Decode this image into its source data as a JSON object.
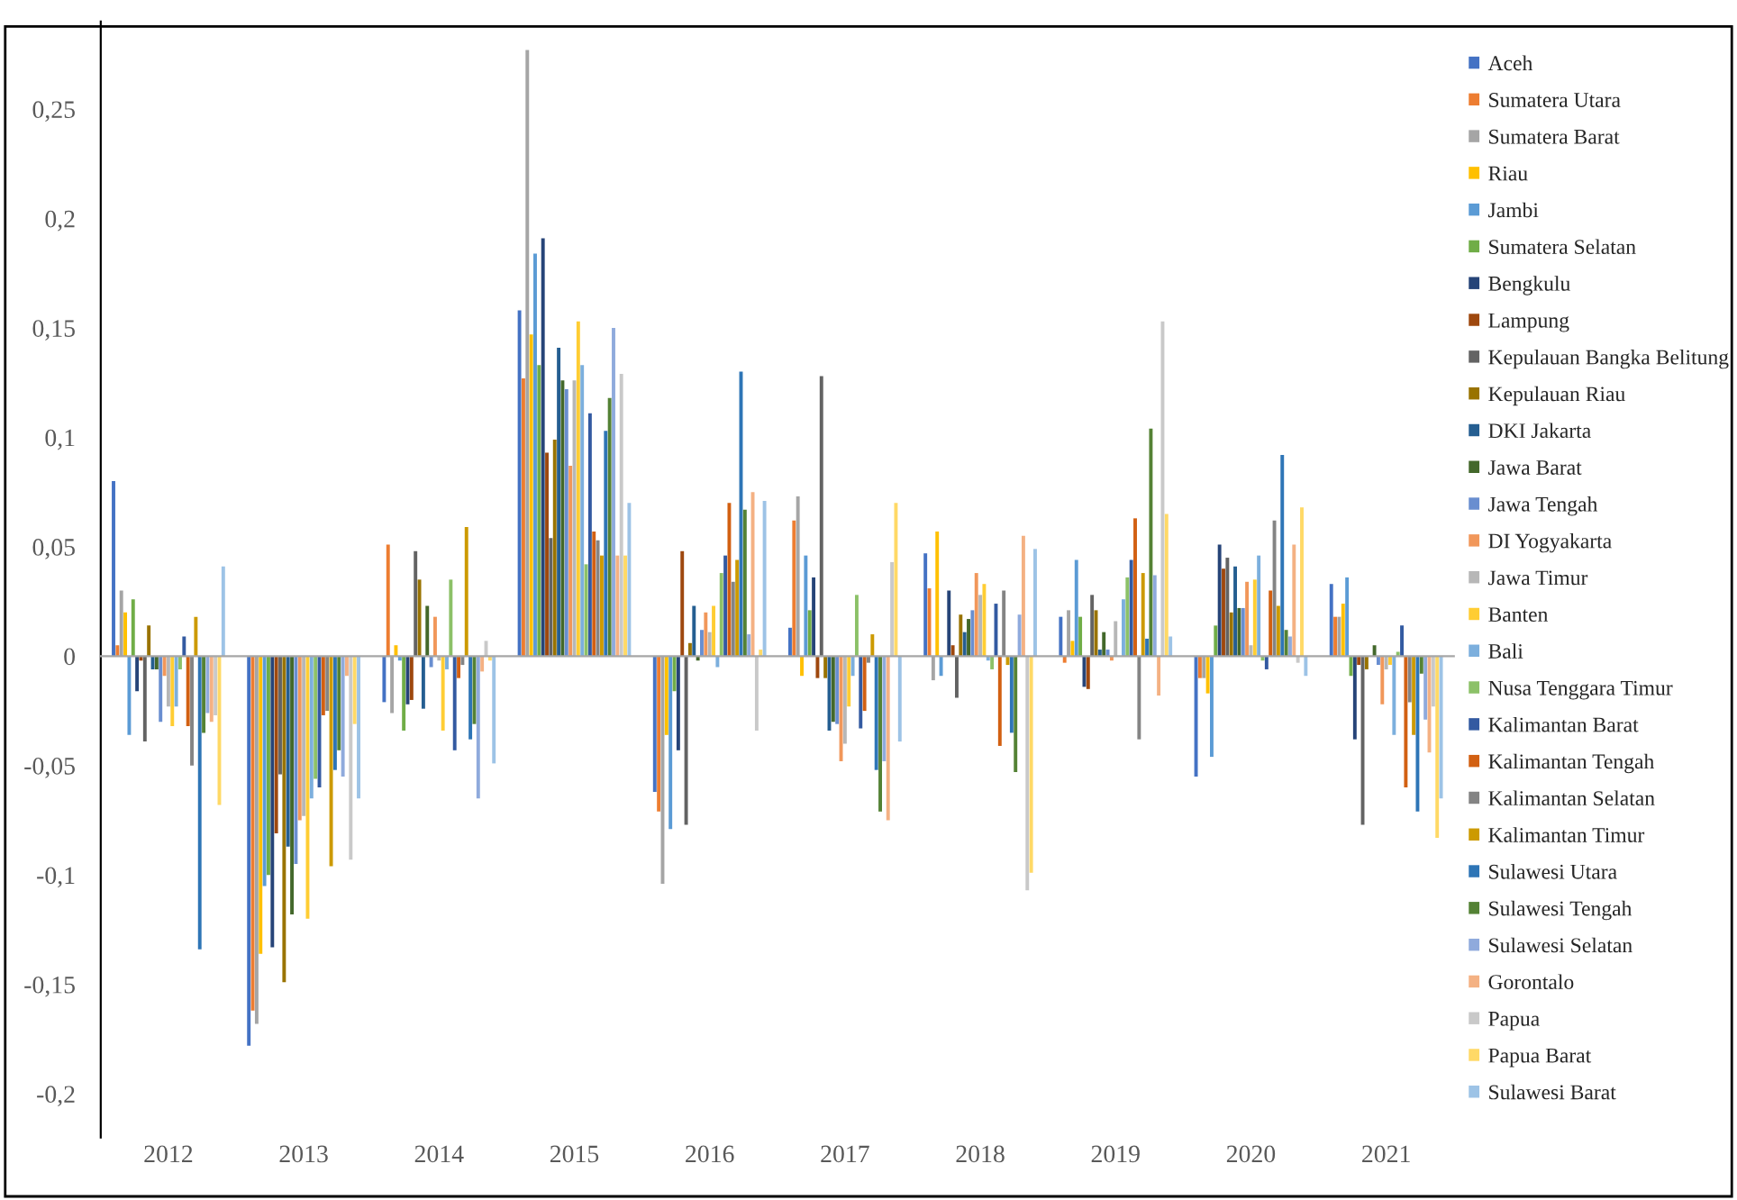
{
  "chart_data": {
    "type": "bar",
    "categories": [
      "2012",
      "2013",
      "2014",
      "2015",
      "2016",
      "2017",
      "2018",
      "2019",
      "2020",
      "2021"
    ],
    "ylim": [
      -0.22,
      0.29
    ],
    "yticks": [
      {
        "value": -0.2,
        "label": "-0,2"
      },
      {
        "value": -0.15,
        "label": "-0,15"
      },
      {
        "value": -0.1,
        "label": "-0,1"
      },
      {
        "value": -0.05,
        "label": "-0,05"
      },
      {
        "value": 0,
        "label": "0"
      },
      {
        "value": 0.05,
        "label": "0,05"
      },
      {
        "value": 0.1,
        "label": "0,1"
      },
      {
        "value": 0.15,
        "label": "0,15"
      },
      {
        "value": 0.2,
        "label": "0,2"
      },
      {
        "value": 0.25,
        "label": "0,25"
      }
    ],
    "legend": "right",
    "series": [
      {
        "name": "Aceh",
        "color": "#4472c4",
        "values": [
          0.08,
          -0.178,
          -0.021,
          0.158,
          -0.062,
          0.013,
          0.047,
          0.018,
          -0.055,
          0.033
        ]
      },
      {
        "name": "Sumatera Utara",
        "color": "#ed7d31",
        "values": [
          0.005,
          -0.162,
          0.051,
          0.127,
          -0.071,
          0.062,
          0.031,
          -0.003,
          -0.01,
          0.018
        ]
      },
      {
        "name": "Sumatera Barat",
        "color": "#a5a5a5",
        "values": [
          0.03,
          -0.168,
          -0.026,
          0.277,
          -0.104,
          0.073,
          -0.011,
          0.021,
          -0.01,
          0.018
        ]
      },
      {
        "name": "Riau",
        "color": "#ffc000",
        "values": [
          0.02,
          -0.136,
          0.005,
          0.147,
          -0.036,
          -0.009,
          0.057,
          0.007,
          -0.017,
          0.024
        ]
      },
      {
        "name": "Jambi",
        "color": "#5b9bd5",
        "values": [
          -0.036,
          -0.105,
          -0.002,
          0.184,
          -0.079,
          0.046,
          -0.009,
          0.044,
          -0.046,
          0.036
        ]
      },
      {
        "name": "Sumatera Selatan",
        "color": "#70ad47",
        "values": [
          0.026,
          -0.1,
          -0.034,
          0.133,
          -0.016,
          0.021,
          null,
          0.018,
          0.014,
          -0.009
        ]
      },
      {
        "name": "Bengkulu",
        "color": "#264478",
        "values": [
          -0.016,
          -0.133,
          -0.022,
          0.191,
          -0.043,
          0.036,
          0.03,
          -0.014,
          0.051,
          -0.038
        ]
      },
      {
        "name": "Lampung",
        "color": "#9e480e",
        "values": [
          -0.002,
          -0.081,
          -0.02,
          0.093,
          0.048,
          -0.01,
          0.005,
          -0.015,
          0.04,
          -0.004
        ]
      },
      {
        "name": "Kepulauan Bangka Belitung",
        "color": "#636363",
        "values": [
          -0.039,
          -0.054,
          0.048,
          0.054,
          -0.077,
          0.128,
          -0.019,
          0.028,
          0.045,
          -0.077
        ]
      },
      {
        "name": "Kepulauan Riau",
        "color": "#997300",
        "values": [
          0.014,
          -0.149,
          0.035,
          0.099,
          0.006,
          -0.01,
          0.019,
          0.021,
          0.02,
          -0.006
        ]
      },
      {
        "name": "DKI Jakarta",
        "color": "#255e91",
        "values": [
          -0.006,
          -0.087,
          -0.024,
          0.141,
          0.023,
          -0.034,
          0.011,
          0.003,
          0.041,
          null
        ]
      },
      {
        "name": "Jawa Barat",
        "color": "#43682b",
        "values": [
          -0.006,
          -0.118,
          0.023,
          0.126,
          -0.002,
          -0.03,
          0.017,
          0.011,
          0.022,
          0.005
        ]
      },
      {
        "name": "Jawa Tengah",
        "color": "#698ed0",
        "values": [
          -0.03,
          -0.095,
          -0.005,
          0.122,
          0.012,
          -0.031,
          0.021,
          0.003,
          0.022,
          -0.004
        ]
      },
      {
        "name": "DI Yogyakarta",
        "color": "#f1975a",
        "values": [
          -0.009,
          -0.075,
          0.018,
          0.087,
          0.02,
          -0.048,
          0.038,
          -0.002,
          0.034,
          -0.022
        ]
      },
      {
        "name": "Jawa Timur",
        "color": "#b7b7b7",
        "values": [
          -0.023,
          -0.073,
          -0.002,
          0.126,
          0.011,
          -0.04,
          0.028,
          0.016,
          0.005,
          -0.006
        ]
      },
      {
        "name": "Banten",
        "color": "#ffcd33",
        "values": [
          -0.032,
          -0.12,
          -0.034,
          0.153,
          0.023,
          -0.023,
          0.033,
          null,
          0.035,
          -0.004
        ]
      },
      {
        "name": "Bali",
        "color": "#7cafdd",
        "values": [
          -0.023,
          -0.065,
          -0.006,
          0.133,
          -0.005,
          -0.009,
          -0.002,
          0.026,
          0.046,
          -0.036
        ]
      },
      {
        "name": "Nusa Tenggara Timur",
        "color": "#8cc168",
        "values": [
          -0.006,
          -0.056,
          0.035,
          0.042,
          0.038,
          0.028,
          -0.006,
          0.036,
          -0.002,
          0.002
        ]
      },
      {
        "name": "Kalimantan Barat",
        "color": "#335aa1",
        "values": [
          0.009,
          -0.06,
          -0.043,
          0.111,
          0.046,
          -0.033,
          0.024,
          0.044,
          -0.006,
          0.014
        ]
      },
      {
        "name": "Kalimantan Tengah",
        "color": "#d26012",
        "values": [
          -0.032,
          -0.027,
          -0.01,
          0.057,
          0.07,
          -0.025,
          -0.041,
          0.063,
          0.03,
          -0.06
        ]
      },
      {
        "name": "Kalimantan Selatan",
        "color": "#848484",
        "values": [
          -0.05,
          -0.025,
          -0.004,
          0.053,
          0.034,
          -0.003,
          0.03,
          -0.038,
          0.062,
          -0.021
        ]
      },
      {
        "name": "Kalimantan Timur",
        "color": "#cc9a00",
        "values": [
          0.018,
          -0.096,
          0.059,
          0.046,
          0.044,
          0.01,
          -0.004,
          0.038,
          0.023,
          -0.036
        ]
      },
      {
        "name": "Sulawesi Utara",
        "color": "#2e75b6",
        "values": [
          -0.134,
          -0.052,
          -0.038,
          0.103,
          0.13,
          -0.052,
          -0.035,
          0.008,
          0.092,
          -0.071
        ]
      },
      {
        "name": "Sulawesi Tengah",
        "color": "#548235",
        "values": [
          -0.035,
          -0.043,
          -0.031,
          0.118,
          0.067,
          -0.071,
          -0.053,
          0.104,
          0.012,
          -0.008
        ]
      },
      {
        "name": "Sulawesi Selatan",
        "color": "#8faadc",
        "values": [
          -0.026,
          -0.055,
          -0.065,
          0.15,
          0.01,
          -0.048,
          0.019,
          0.037,
          0.009,
          -0.029
        ]
      },
      {
        "name": "Gorontalo",
        "color": "#f4b183",
        "values": [
          -0.03,
          -0.009,
          -0.007,
          0.046,
          0.075,
          -0.075,
          0.055,
          -0.018,
          0.051,
          -0.044
        ]
      },
      {
        "name": "Papua",
        "color": "#c9c9c9",
        "values": [
          -0.027,
          -0.093,
          0.007,
          0.129,
          -0.034,
          0.043,
          -0.107,
          0.153,
          -0.003,
          -0.023
        ]
      },
      {
        "name": "Papua Barat",
        "color": "#ffd966",
        "values": [
          -0.068,
          -0.031,
          -0.002,
          0.046,
          0.003,
          0.07,
          -0.099,
          0.065,
          0.068,
          -0.083
        ]
      },
      {
        "name": "Sulawesi Barat",
        "color": "#9dc3e6",
        "values": [
          0.041,
          -0.065,
          -0.049,
          0.07,
          0.071,
          -0.039,
          0.049,
          0.009,
          -0.009,
          -0.065
        ]
      }
    ]
  }
}
